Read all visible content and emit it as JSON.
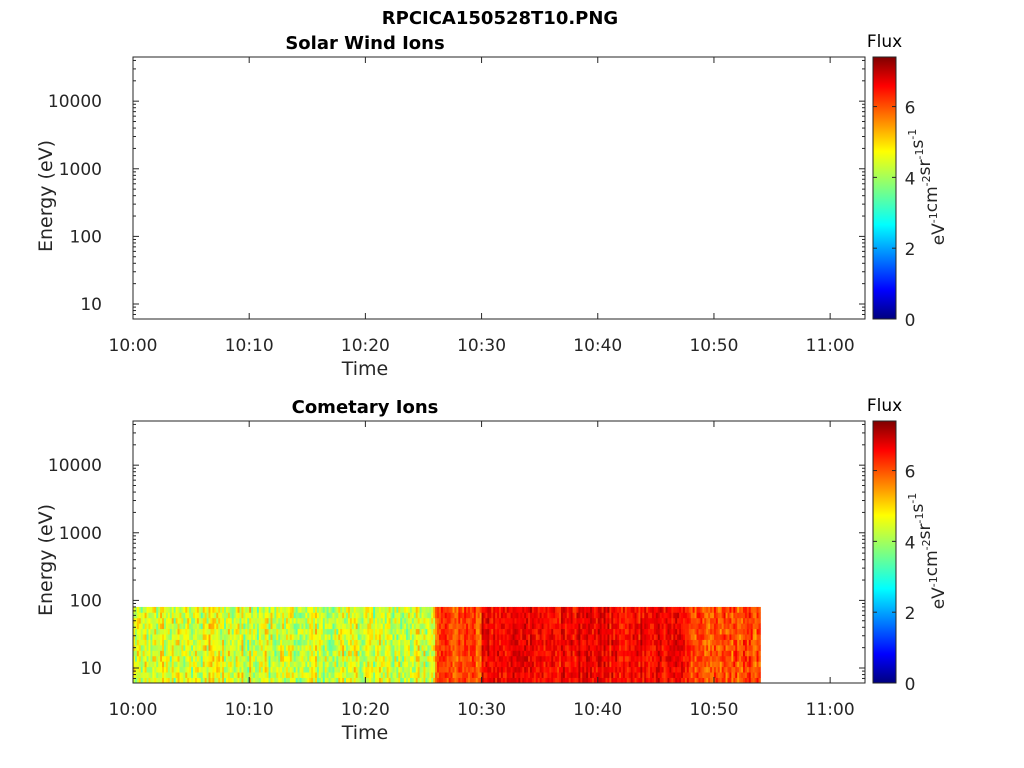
{
  "figure": {
    "title": "RPCICA150528T10.PNG"
  },
  "chart_data": [
    {
      "type": "heatmap",
      "title": "Solar Wind Ions",
      "xlabel": "Time",
      "ylabel": "Energy (eV)",
      "xlim": [
        "10:00",
        "11:03"
      ],
      "xticks": [
        "10:00",
        "10:10",
        "10:20",
        "10:30",
        "10:40",
        "10:50",
        "11:00"
      ],
      "yscale": "log",
      "ylim": [
        6,
        45000
      ],
      "yticks": [
        10,
        100,
        1000,
        10000
      ],
      "ytick_labels": [
        "10",
        "100",
        "1000",
        "10000"
      ],
      "colorbar": {
        "title": "Flux",
        "label": "eV-1cm-2sr-1s-1",
        "range": [
          0,
          7.4
        ],
        "ticks": [
          "0",
          "2",
          "4",
          "6"
        ],
        "colormap": "jet"
      },
      "data_regions": []
    },
    {
      "type": "heatmap",
      "title": "Cometary Ions",
      "xlabel": "Time",
      "ylabel": "Energy (eV)",
      "xlim": [
        "10:00",
        "11:03"
      ],
      "xticks": [
        "10:00",
        "10:10",
        "10:20",
        "10:30",
        "10:40",
        "10:50",
        "11:00"
      ],
      "yscale": "log",
      "ylim": [
        6,
        45000
      ],
      "yticks": [
        10,
        100,
        1000,
        10000
      ],
      "ytick_labels": [
        "10",
        "100",
        "1000",
        "10000"
      ],
      "colorbar": {
        "title": "Flux",
        "label": "eV-1cm-2sr-1s-1",
        "range": [
          0,
          7.4
        ],
        "ticks": [
          "0",
          "2",
          "4",
          "6"
        ],
        "colormap": "jet"
      },
      "data_regions": [
        {
          "t_start": "10:00",
          "t_end": "10:26",
          "e_min": 6,
          "e_max": 80,
          "flux_level": 4.3,
          "flux_spread": 1.0
        },
        {
          "t_start": "10:26",
          "t_end": "10:30",
          "e_min": 6,
          "e_max": 80,
          "flux_level": 5.9,
          "flux_spread": 0.6
        },
        {
          "t_start": "10:30",
          "t_end": "10:48",
          "e_min": 6,
          "e_max": 80,
          "flux_level": 6.5,
          "flux_spread": 0.6
        },
        {
          "t_start": "10:48",
          "t_end": "10:54",
          "e_min": 6,
          "e_max": 80,
          "flux_level": 5.9,
          "flux_spread": 0.7
        }
      ]
    }
  ]
}
